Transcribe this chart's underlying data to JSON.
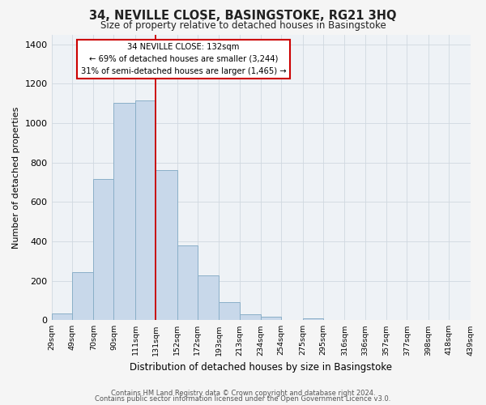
{
  "title1": "34, NEVILLE CLOSE, BASINGSTOKE, RG21 3HQ",
  "title2": "Size of property relative to detached houses in Basingstoke",
  "xlabel": "Distribution of detached houses by size in Basingstoke",
  "ylabel": "Number of detached properties",
  "bin_labels": [
    "29sqm",
    "49sqm",
    "70sqm",
    "90sqm",
    "111sqm",
    "131sqm",
    "152sqm",
    "172sqm",
    "193sqm",
    "213sqm",
    "234sqm",
    "254sqm",
    "275sqm",
    "295sqm",
    "316sqm",
    "336sqm",
    "357sqm",
    "377sqm",
    "398sqm",
    "418sqm",
    "439sqm"
  ],
  "bin_edges": [
    29,
    49,
    70,
    90,
    111,
    131,
    152,
    172,
    193,
    213,
    234,
    254,
    275,
    295,
    316,
    336,
    357,
    377,
    398,
    418,
    439
  ],
  "bar_heights": [
    35,
    243,
    716,
    1101,
    1115,
    762,
    380,
    228,
    90,
    30,
    18,
    0,
    10,
    0,
    0,
    0,
    0,
    0,
    0,
    0
  ],
  "bar_color": "#c8d8ea",
  "bar_edge_color": "#8aafc8",
  "property_line_x": 131,
  "annotation_box_color": "#ffffff",
  "annotation_box_edge_color": "#cc0000",
  "property_line_color": "#cc0000",
  "ylim": [
    0,
    1450
  ],
  "yticks": [
    0,
    200,
    400,
    600,
    800,
    1000,
    1200,
    1400
  ],
  "footer1": "Contains HM Land Registry data © Crown copyright and database right 2024.",
  "footer2": "Contains public sector information licensed under the Open Government Licence v3.0.",
  "grid_color": "#d0d8e0",
  "background_color": "#eef2f6"
}
